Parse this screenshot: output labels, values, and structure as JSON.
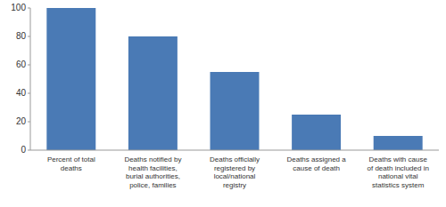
{
  "chart_data": {
    "type": "bar",
    "categories": [
      "Percent of total\ndeaths",
      "Deaths notified by\nhealth facilities,\nburial authorities,\npolice, families",
      "Deaths officially\nregistered by\nlocal/national\nregistry",
      "Deaths assigned a\ncause of death",
      "Deaths with cause\nof death included in\nnational vital\nstatistics system"
    ],
    "values": [
      100,
      80,
      55,
      25,
      10
    ],
    "color": "#4a7ab5",
    "ylim": [
      0,
      100
    ],
    "yticks": [
      0,
      20,
      40,
      60,
      80,
      100
    ],
    "grid": false
  }
}
